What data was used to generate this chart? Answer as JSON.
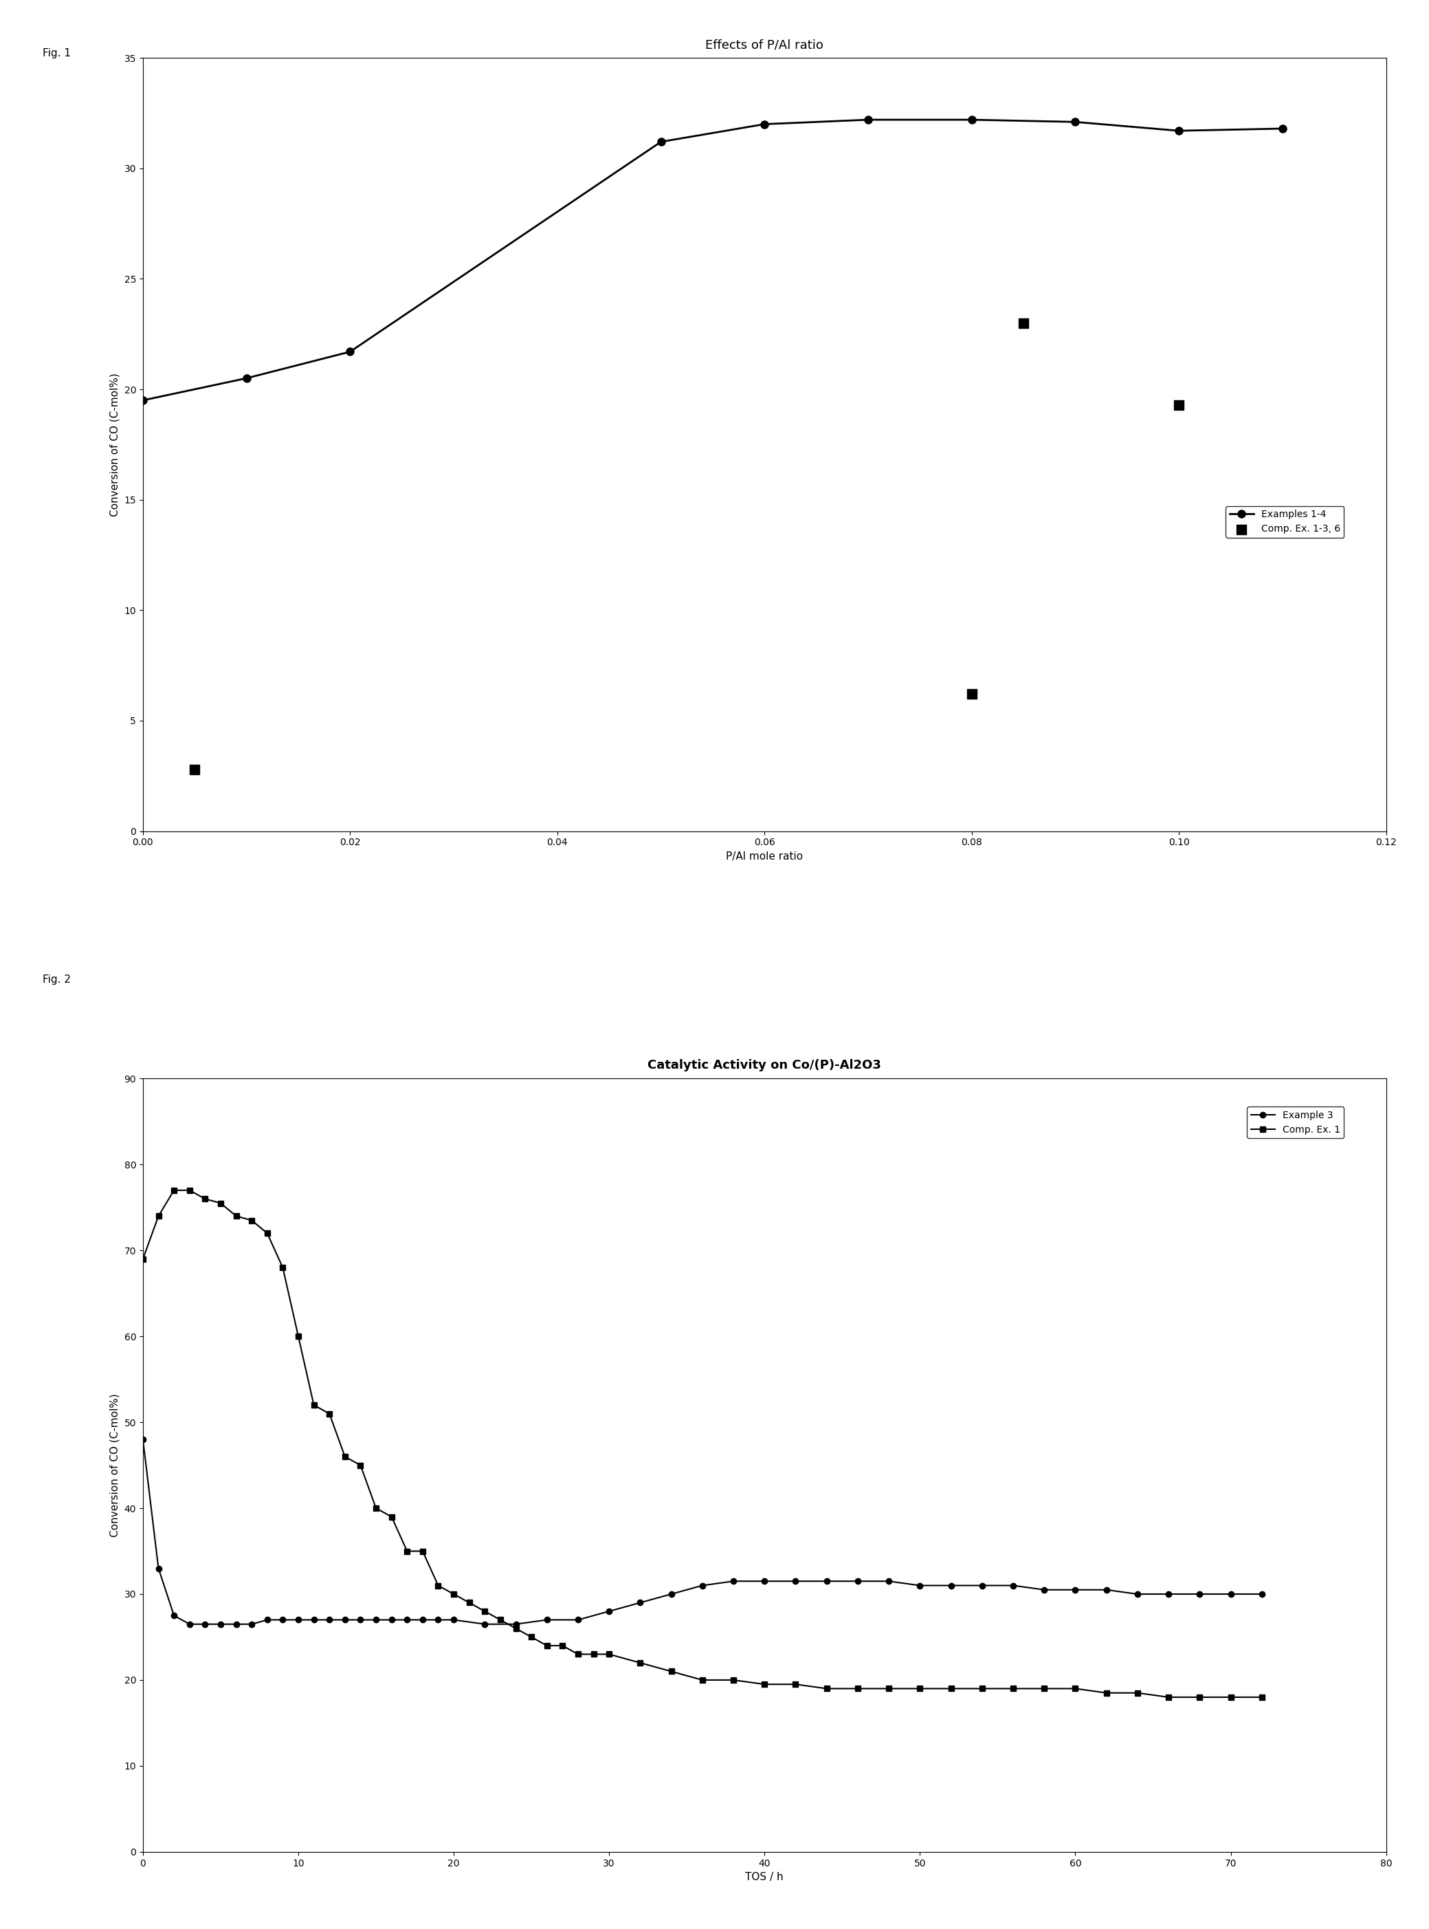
{
  "fig1": {
    "title": "Effects of P/Al ratio",
    "xlabel": "P/Al mole ratio",
    "ylabel": "Conversion of CO (C-mol%)",
    "xlim": [
      0.0,
      0.12
    ],
    "ylim": [
      0,
      35
    ],
    "xticks": [
      0.0,
      0.02,
      0.04,
      0.06,
      0.08,
      0.1,
      0.12
    ],
    "yticks": [
      0,
      5,
      10,
      15,
      20,
      25,
      30,
      35
    ],
    "line1_x": [
      0.0,
      0.01,
      0.02,
      0.05,
      0.06,
      0.07,
      0.08,
      0.09,
      0.1,
      0.11
    ],
    "line1_y": [
      19.5,
      20.5,
      21.7,
      31.2,
      32.0,
      32.2,
      32.2,
      32.1,
      31.7,
      31.8
    ],
    "line1_label": "Examples 1-4",
    "scatter1_x": [
      0.005,
      0.08,
      0.085,
      0.1
    ],
    "scatter1_y": [
      2.8,
      6.2,
      23.0,
      19.3
    ],
    "scatter1_label": "Comp. Ex. 1-3, 6"
  },
  "fig2": {
    "title": "Catalytic Activity on Co/(P)-Al2O3",
    "xlabel": "TOS / h",
    "ylabel": "Conversion of CO (C-mol%)",
    "xlim": [
      0,
      80
    ],
    "ylim": [
      0,
      90
    ],
    "xticks": [
      0,
      10,
      20,
      30,
      40,
      50,
      60,
      70,
      80
    ],
    "yticks": [
      0,
      10,
      20,
      30,
      40,
      50,
      60,
      70,
      80,
      90
    ],
    "line1_x": [
      0,
      1,
      2,
      3,
      4,
      5,
      6,
      7,
      8,
      9,
      10,
      11,
      12,
      13,
      14,
      15,
      16,
      17,
      18,
      19,
      20,
      22,
      24,
      26,
      28,
      30,
      32,
      34,
      36,
      38,
      40,
      42,
      44,
      46,
      48,
      50,
      52,
      54,
      56,
      58,
      60,
      62,
      64,
      66,
      68,
      70,
      72
    ],
    "line1_y": [
      48,
      33,
      27.5,
      26.5,
      26.5,
      26.5,
      26.5,
      26.5,
      27,
      27,
      27,
      27,
      27,
      27,
      27,
      27,
      27,
      27,
      27,
      27,
      27,
      26.5,
      26.5,
      27,
      27,
      28,
      29,
      30,
      31,
      31.5,
      31.5,
      31.5,
      31.5,
      31.5,
      31.5,
      31,
      31,
      31,
      31,
      30.5,
      30.5,
      30.5,
      30,
      30,
      30,
      30,
      30
    ],
    "line1_label": "Example 3",
    "line2_x": [
      0,
      1,
      2,
      3,
      4,
      5,
      6,
      7,
      8,
      9,
      10,
      11,
      12,
      13,
      14,
      15,
      16,
      17,
      18,
      19,
      20,
      21,
      22,
      23,
      24,
      25,
      26,
      27,
      28,
      29,
      30,
      32,
      34,
      36,
      38,
      40,
      42,
      44,
      46,
      48,
      50,
      52,
      54,
      56,
      58,
      60,
      62,
      64,
      66,
      68,
      70,
      72
    ],
    "line2_y": [
      69,
      74,
      77,
      77,
      76,
      75.5,
      74,
      73.5,
      72,
      68,
      60,
      52,
      51,
      46,
      45,
      40,
      39,
      35,
      35,
      31,
      30,
      29,
      28,
      27,
      26,
      25,
      24,
      24,
      23,
      23,
      23,
      22,
      21,
      20,
      20,
      19.5,
      19.5,
      19,
      19,
      19,
      19,
      19,
      19,
      19,
      19,
      19,
      18.5,
      18.5,
      18,
      18,
      18,
      18
    ],
    "line2_label": "Comp. Ex. 1"
  },
  "background_color": "#ffffff",
  "line_color": "#000000",
  "fig_label_fontsize": 11,
  "title_fontsize": 13,
  "axis_label_fontsize": 11,
  "tick_fontsize": 10,
  "legend_fontsize": 10
}
